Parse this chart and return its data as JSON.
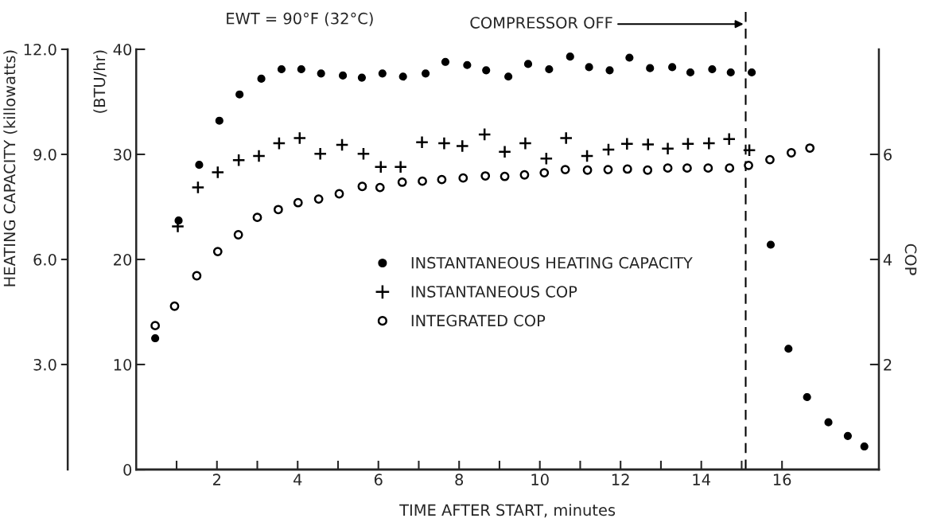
{
  "chart_data": {
    "type": "scatter",
    "title": "EWT = 90°F (32°C)",
    "xlabel": "TIME AFTER START, minutes",
    "ylabel": "(BTU/hr)",
    "y3label": "HEATING CAPACITY (killowatts)",
    "y2label": "COP",
    "xlim": [
      0,
      18.4
    ],
    "xticks": [
      {
        "value": 1,
        "label": null
      },
      2,
      {
        "value": 3,
        "label": null
      },
      4,
      {
        "value": 5,
        "label": null
      },
      6,
      {
        "value": 7,
        "label": null
      },
      8,
      {
        "value": 9,
        "label": null
      },
      10,
      {
        "value": 11,
        "label": null
      },
      12,
      {
        "value": 13,
        "label": null
      },
      14,
      {
        "value": 15,
        "label": null
      },
      16
    ],
    "ylim": [
      0,
      40
    ],
    "yticks": [
      0,
      10,
      20,
      30,
      40
    ],
    "y3lim": [
      0,
      12
    ],
    "y3ticks": [
      {
        "value": 3,
        "label": "3.0"
      },
      {
        "value": 6,
        "label": "6.0"
      },
      {
        "value": 9,
        "label": "9.0"
      },
      {
        "value": 12,
        "label": "12.0"
      }
    ],
    "y2lim": [
      0,
      8
    ],
    "y2ticks": [
      2,
      4,
      6
    ],
    "grid": false,
    "legend": "center",
    "ref_lines": [
      {
        "axis": "x",
        "value": 15.1,
        "label": "COMPRESSOR OFF",
        "line_style": "dashed",
        "color": "#000000"
      }
    ],
    "series": [
      {
        "name": "INSTANTANEOUS HEATING CAPACITY",
        "color": "#000000",
        "marker": "circle",
        "x": [
          0.47,
          1.05,
          1.56,
          2.06,
          2.56,
          3.1,
          3.6,
          4.09,
          4.58,
          5.12,
          5.59,
          6.1,
          6.61,
          7.17,
          7.66,
          8.2,
          8.67,
          9.22,
          9.71,
          10.23,
          10.75,
          11.22,
          11.73,
          12.22,
          12.73,
          13.28,
          13.73,
          14.27,
          14.73,
          15.25,
          15.72,
          16.16,
          16.62,
          17.15,
          17.63,
          18.04
        ],
        "values": [
          12.5,
          23.7,
          29.0,
          33.2,
          35.7,
          37.2,
          38.1,
          38.1,
          37.7,
          37.5,
          37.3,
          37.7,
          37.4,
          37.7,
          38.8,
          38.5,
          38.0,
          37.4,
          38.6,
          38.1,
          39.3,
          38.3,
          38.0,
          39.2,
          38.2,
          38.3,
          37.8,
          38.1,
          37.8,
          37.8,
          21.4,
          11.5,
          6.9,
          4.5,
          3.2,
          2.2
        ]
      },
      {
        "name": "INSTANTANEOUS COP",
        "color": "#000000",
        "marker": "cross",
        "axis": "y2",
        "x": [
          1.03,
          1.53,
          2.02,
          2.54,
          3.04,
          3.54,
          4.05,
          4.56,
          5.1,
          5.63,
          6.06,
          6.55,
          7.08,
          7.63,
          8.08,
          8.63,
          9.13,
          9.64,
          10.16,
          10.65,
          11.17,
          11.7,
          12.16,
          12.68,
          13.17,
          13.67,
          14.19,
          14.69,
          15.19
        ],
        "values": [
          4.63,
          5.37,
          5.66,
          5.89,
          5.97,
          6.21,
          6.31,
          6.01,
          6.18,
          6.01,
          5.76,
          5.76,
          6.23,
          6.21,
          6.16,
          6.38,
          6.05,
          6.21,
          5.92,
          6.31,
          5.97,
          6.09,
          6.2,
          6.19,
          6.11,
          6.2,
          6.21,
          6.29,
          6.08
        ]
      },
      {
        "name": "INTEGRATED COP",
        "color": "#000000",
        "marker": "circle",
        "axis": "y2",
        "x": [
          0.47,
          0.95,
          1.5,
          2.02,
          2.53,
          3.0,
          3.52,
          4.01,
          4.52,
          5.03,
          5.6,
          6.04,
          6.59,
          7.09,
          7.57,
          8.1,
          8.65,
          9.13,
          9.62,
          10.11,
          10.63,
          11.18,
          11.69,
          12.17,
          12.67,
          13.17,
          13.65,
          14.17,
          14.7,
          15.17,
          15.7,
          16.23,
          16.69
        ],
        "values": [
          2.74,
          3.11,
          3.69,
          4.15,
          4.47,
          4.8,
          4.95,
          5.08,
          5.15,
          5.25,
          5.39,
          5.37,
          5.47,
          5.49,
          5.52,
          5.55,
          5.59,
          5.58,
          5.61,
          5.65,
          5.71,
          5.7,
          5.71,
          5.72,
          5.7,
          5.74,
          5.74,
          5.74,
          5.74,
          5.79,
          5.9,
          6.03,
          6.12
        ]
      }
    ]
  }
}
